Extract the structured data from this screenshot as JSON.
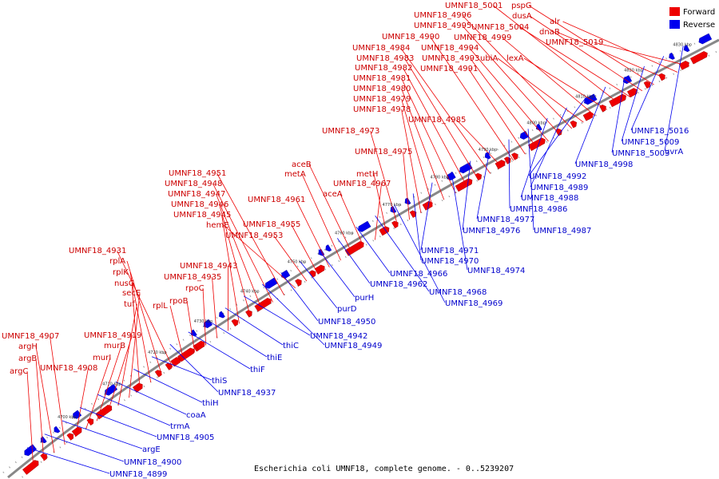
{
  "caption": "Escherichia coli UMNF18, complete genome. - 0..5239207",
  "legend": [
    {
      "label": "Forward",
      "color": "#ee0000"
    },
    {
      "label": "Reverse",
      "color": "#0000ee"
    }
  ],
  "colors": {
    "forward": "#ee0000",
    "reverse": "#0000ee",
    "backbone": "#888888"
  },
  "ticks": [
    "4700 kbp",
    "4710 kbp",
    "4720 kbp",
    "4730 kbp",
    "4740 kbp",
    "4750 kbp",
    "4760 kbp",
    "4770 kbp",
    "4780 kbp",
    "4790 kbp",
    "4800 kbp",
    "4810 kbp",
    "4820 kbp",
    "4830 kbp"
  ],
  "forward_labels": [
    "argC",
    "argB",
    "argH",
    "UMNF18_4907",
    "UMNF18_4908",
    "murI",
    "murB",
    "UMNF18_4919",
    "tuf",
    "secE",
    "nusG",
    "rplK",
    "rplA",
    "UMNF18_4931",
    "rplL",
    "rpoB",
    "rpoC",
    "UMNF18_4935",
    "UMNF18_4943",
    "UMNF18_4945",
    "UMNF18_4946",
    "UMNF18_4947",
    "UMNF18_4948",
    "UMNF18_4951",
    "hemE",
    "UMNF18_4953",
    "UMNF18_4955",
    "UMNF18_4961",
    "metA",
    "aceB",
    "aceA",
    "UMNF18_4967",
    "metH",
    "UMNF18_4973",
    "UMNF18_4975",
    "UMNF18_4978",
    "UMNF18_4979",
    "UMNF18_4980",
    "UMNF18_4981",
    "UMNF18_4982",
    "UMNF18_4983",
    "UMNF18_4984",
    "UMNF18_4985",
    "UMNF18_4990",
    "UMNF18_4991",
    "UMNF18_4993",
    "UMNF18_4994",
    "UMNF18_4995",
    "UMNF18_4996",
    "ubiA",
    "UMNF18_4999",
    "lexA",
    "UMNF18_5001",
    "UMNF18_5004",
    "dusA",
    "pspG",
    "dnaB",
    "alr",
    "UMNF18_5019"
  ],
  "reverse_labels": [
    "UMNF18_4899",
    "UMNF18_4900",
    "argE",
    "UMNF18_4905",
    "trmA",
    "coaA",
    "thiH",
    "thiS",
    "UMNF18_4937",
    "thiF",
    "thiE",
    "thiC",
    "UMNF18_4942",
    "UMNF18_4949",
    "UMNF18_4950",
    "purD",
    "purH",
    "UMNF18_4962",
    "UMNF18_4966",
    "UMNF18_4968",
    "UMNF18_4969",
    "UMNF18_4970",
    "UMNF18_4971",
    "UMNF18_4974",
    "UMNF18_4976",
    "UMNF18_4977",
    "UMNF18_4986",
    "UMNF18_4987",
    "UMNF18_4988",
    "UMNF18_4989",
    "UMNF18_4992",
    "UMNF18_4998",
    "UMNF18_5003",
    "UMNF18_5009",
    "UMNF18_5016",
    "uvrA"
  ]
}
